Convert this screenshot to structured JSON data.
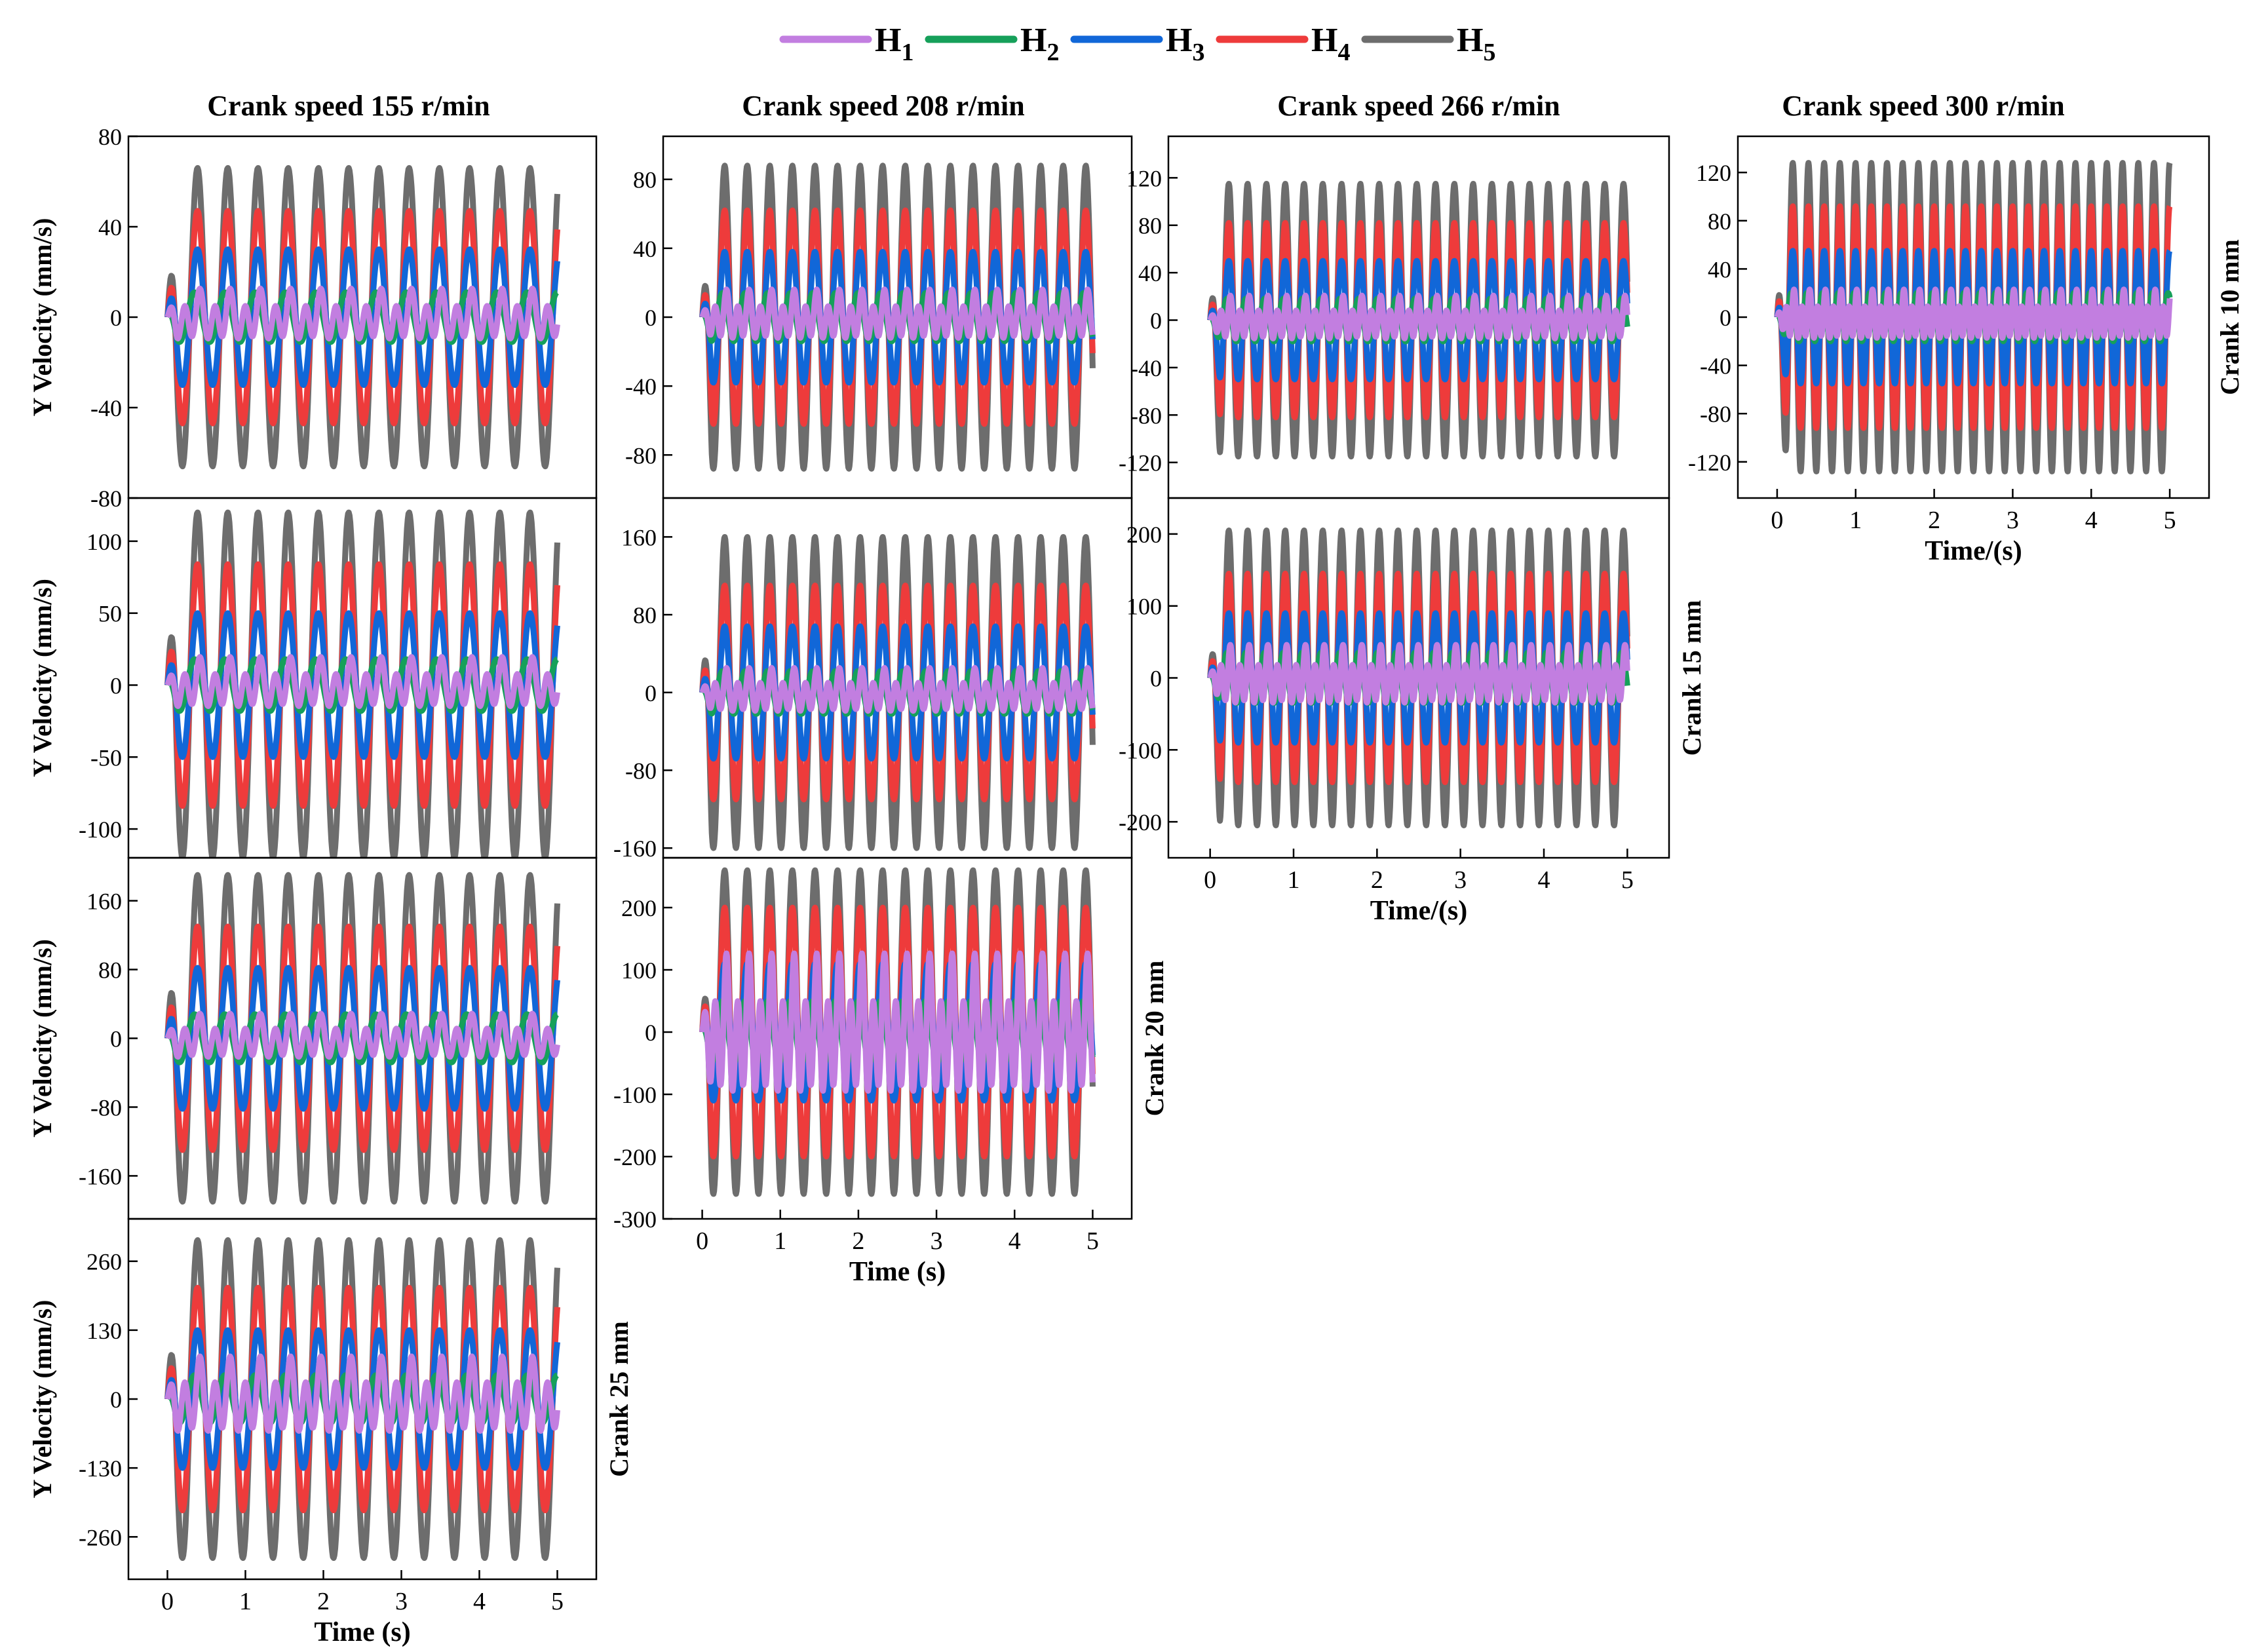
{
  "chart_data": {
    "type": "line",
    "legend": {
      "placement": "top-center",
      "items": [
        {
          "name": "H",
          "sub": "1",
          "color": "#c27ee0"
        },
        {
          "name": "H",
          "sub": "2",
          "color": "#16a05a"
        },
        {
          "name": "H",
          "sub": "3",
          "color": "#1167d8"
        },
        {
          "name": "H",
          "sub": "4",
          "color": "#ee3b3b"
        },
        {
          "name": "H",
          "sub": "5",
          "color": "#6d6d6d"
        }
      ]
    },
    "columns": [
      {
        "title": "Crank speed 155 r/min",
        "speed_rpm": 155
      },
      {
        "title": "Crank speed 208 r/min",
        "speed_rpm": 208
      },
      {
        "title": "Crank speed 266 r/min",
        "speed_rpm": 266
      },
      {
        "title": "Crank speed 300 r/min",
        "speed_rpm": 300
      }
    ],
    "rows": [
      {
        "label": "Crank 10 mm",
        "crank_mm": 10
      },
      {
        "label": "Crank 15 mm",
        "crank_mm": 15
      },
      {
        "label": "Crank 20 mm",
        "crank_mm": 20
      },
      {
        "label": "Crank 25 mm",
        "crank_mm": 25
      }
    ],
    "x_range": [
      -0.5,
      5.5
    ],
    "x_ticks": [
      "0",
      "1",
      "2",
      "3",
      "4",
      "5"
    ],
    "y_label": "Y Velocity (mm/s)",
    "panels": [
      {
        "id": "c155-r10",
        "col": 0,
        "row": 0,
        "cycles": 12.9,
        "ylim": [
          -80,
          80
        ],
        "y_ticks": [
          "-80",
          "-40",
          "0",
          "40",
          "80"
        ],
        "x_label": "",
        "amplitudes": [
          11,
          11,
          30,
          47,
          66
        ],
        "row_label": false
      },
      {
        "id": "c155-r15",
        "col": 0,
        "row": 1,
        "cycles": 12.9,
        "ylim": [
          -120,
          130
        ],
        "y_ticks": [
          "-100",
          "-50",
          "0",
          "50",
          "100"
        ],
        "x_label": "",
        "amplitudes": [
          17,
          18,
          50,
          84,
          120
        ],
        "row_label": false
      },
      {
        "id": "c155-r20",
        "col": 0,
        "row": 2,
        "cycles": 12.9,
        "ylim": [
          -210,
          210
        ],
        "y_ticks": [
          "-160",
          "-80",
          "0",
          "80",
          "160"
        ],
        "x_label": "",
        "amplitudes": [
          25,
          28,
          82,
          130,
          190
        ],
        "row_label": false
      },
      {
        "id": "c155-r25",
        "col": 0,
        "row": 3,
        "cycles": 12.9,
        "ylim": [
          -340,
          340
        ],
        "y_ticks": [
          "-260",
          "-130",
          "0",
          "130",
          "260"
        ],
        "x_label": "Time (s)",
        "amplitudes": [
          70,
          45,
          130,
          210,
          300
        ],
        "row_label": true
      },
      {
        "id": "c208-r10",
        "col": 1,
        "row": 0,
        "cycles": 17.3,
        "ylim": [
          -105,
          105
        ],
        "y_ticks": [
          "-80",
          "-40",
          "0",
          "40",
          "80"
        ],
        "x_label": "",
        "amplitudes": [
          14,
          14,
          38,
          62,
          88
        ],
        "row_label": false
      },
      {
        "id": "c208-r15",
        "col": 1,
        "row": 1,
        "cycles": 17.3,
        "ylim": [
          -170,
          200
        ],
        "y_ticks": [
          "-160",
          "-80",
          "0",
          "80",
          "160"
        ],
        "x_label": "",
        "amplitudes": [
          22,
          22,
          68,
          110,
          160
        ],
        "row_label": false
      },
      {
        "id": "c208-r20",
        "col": 1,
        "row": 2,
        "cycles": 17.3,
        "ylim": [
          -300,
          280
        ],
        "y_ticks": [
          "-300",
          "-200",
          "-100",
          "0",
          "100",
          "200"
        ],
        "x_label": "Time (s)",
        "amplitudes": [
          110,
          50,
          110,
          200,
          260
        ],
        "row_label": true
      },
      {
        "id": "c266-r10",
        "col": 2,
        "row": 0,
        "cycles": 22.2,
        "ylim": [
          -150,
          155
        ],
        "y_ticks": [
          "-120",
          "-80",
          "-40",
          "0",
          "40",
          "80",
          "120"
        ],
        "x_label": "",
        "amplitudes": [
          18,
          18,
          50,
          82,
          115
        ],
        "row_label": false
      },
      {
        "id": "c266-r15",
        "col": 2,
        "row": 1,
        "cycles": 22.2,
        "ylim": [
          -250,
          250
        ],
        "y_ticks": [
          "-200",
          "-100",
          "0",
          "100",
          "200"
        ],
        "x_label": "Time/(s)",
        "amplitudes": [
          40,
          35,
          90,
          145,
          205
        ],
        "row_label": true
      },
      {
        "id": "c300-r10",
        "col": 3,
        "row": 0,
        "cycles": 25.0,
        "ylim": [
          -150,
          150
        ],
        "y_ticks": [
          "-120",
          "-80",
          "-40",
          "0",
          "40",
          "80",
          "120"
        ],
        "x_label": "Time/(s)",
        "amplitudes": [
          20,
          20,
          55,
          92,
          128
        ],
        "row_label": true
      }
    ]
  }
}
